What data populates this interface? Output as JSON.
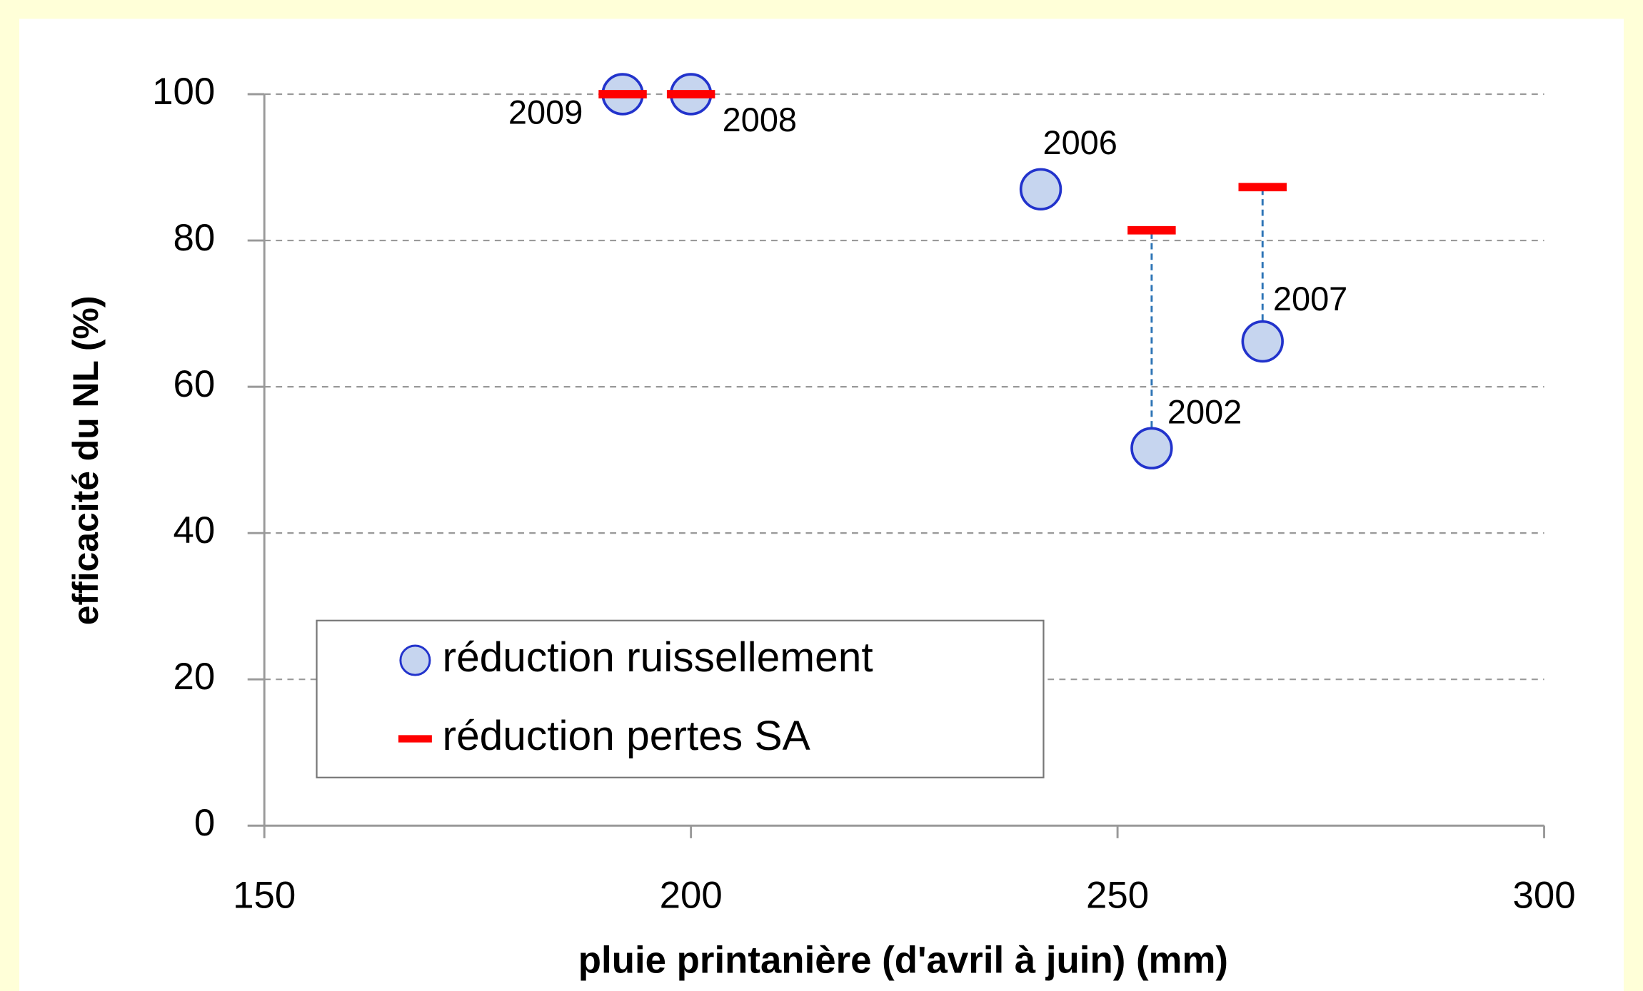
{
  "chart_data": {
    "type": "scatter",
    "x_label": "pluie printanière (d'avril à juin) (mm)",
    "y_label": "efficacité du NL (%)",
    "x": [
      192,
      200,
      241,
      254,
      267
    ],
    "point_labels": [
      "2009",
      "2008",
      "2006",
      "2002",
      "2007"
    ],
    "series": [
      {
        "name": "réduction ruissellement",
        "color": "#c6d5ef",
        "marker": "circle",
        "values": [
          100,
          100,
          87,
          51.6,
          66.2
        ]
      },
      {
        "name": "réduction pertes SA",
        "color": "#ff0000",
        "marker": "dash",
        "values": [
          100,
          100,
          null,
          81.4,
          87.3
        ]
      }
    ],
    "xlim": [
      150,
      300
    ],
    "xticks": [
      150,
      200,
      250,
      300
    ],
    "ylim": [
      0,
      100
    ],
    "yticks": [
      0,
      20,
      40,
      60,
      80,
      100
    ],
    "grid": true,
    "legend": "lower left"
  }
}
